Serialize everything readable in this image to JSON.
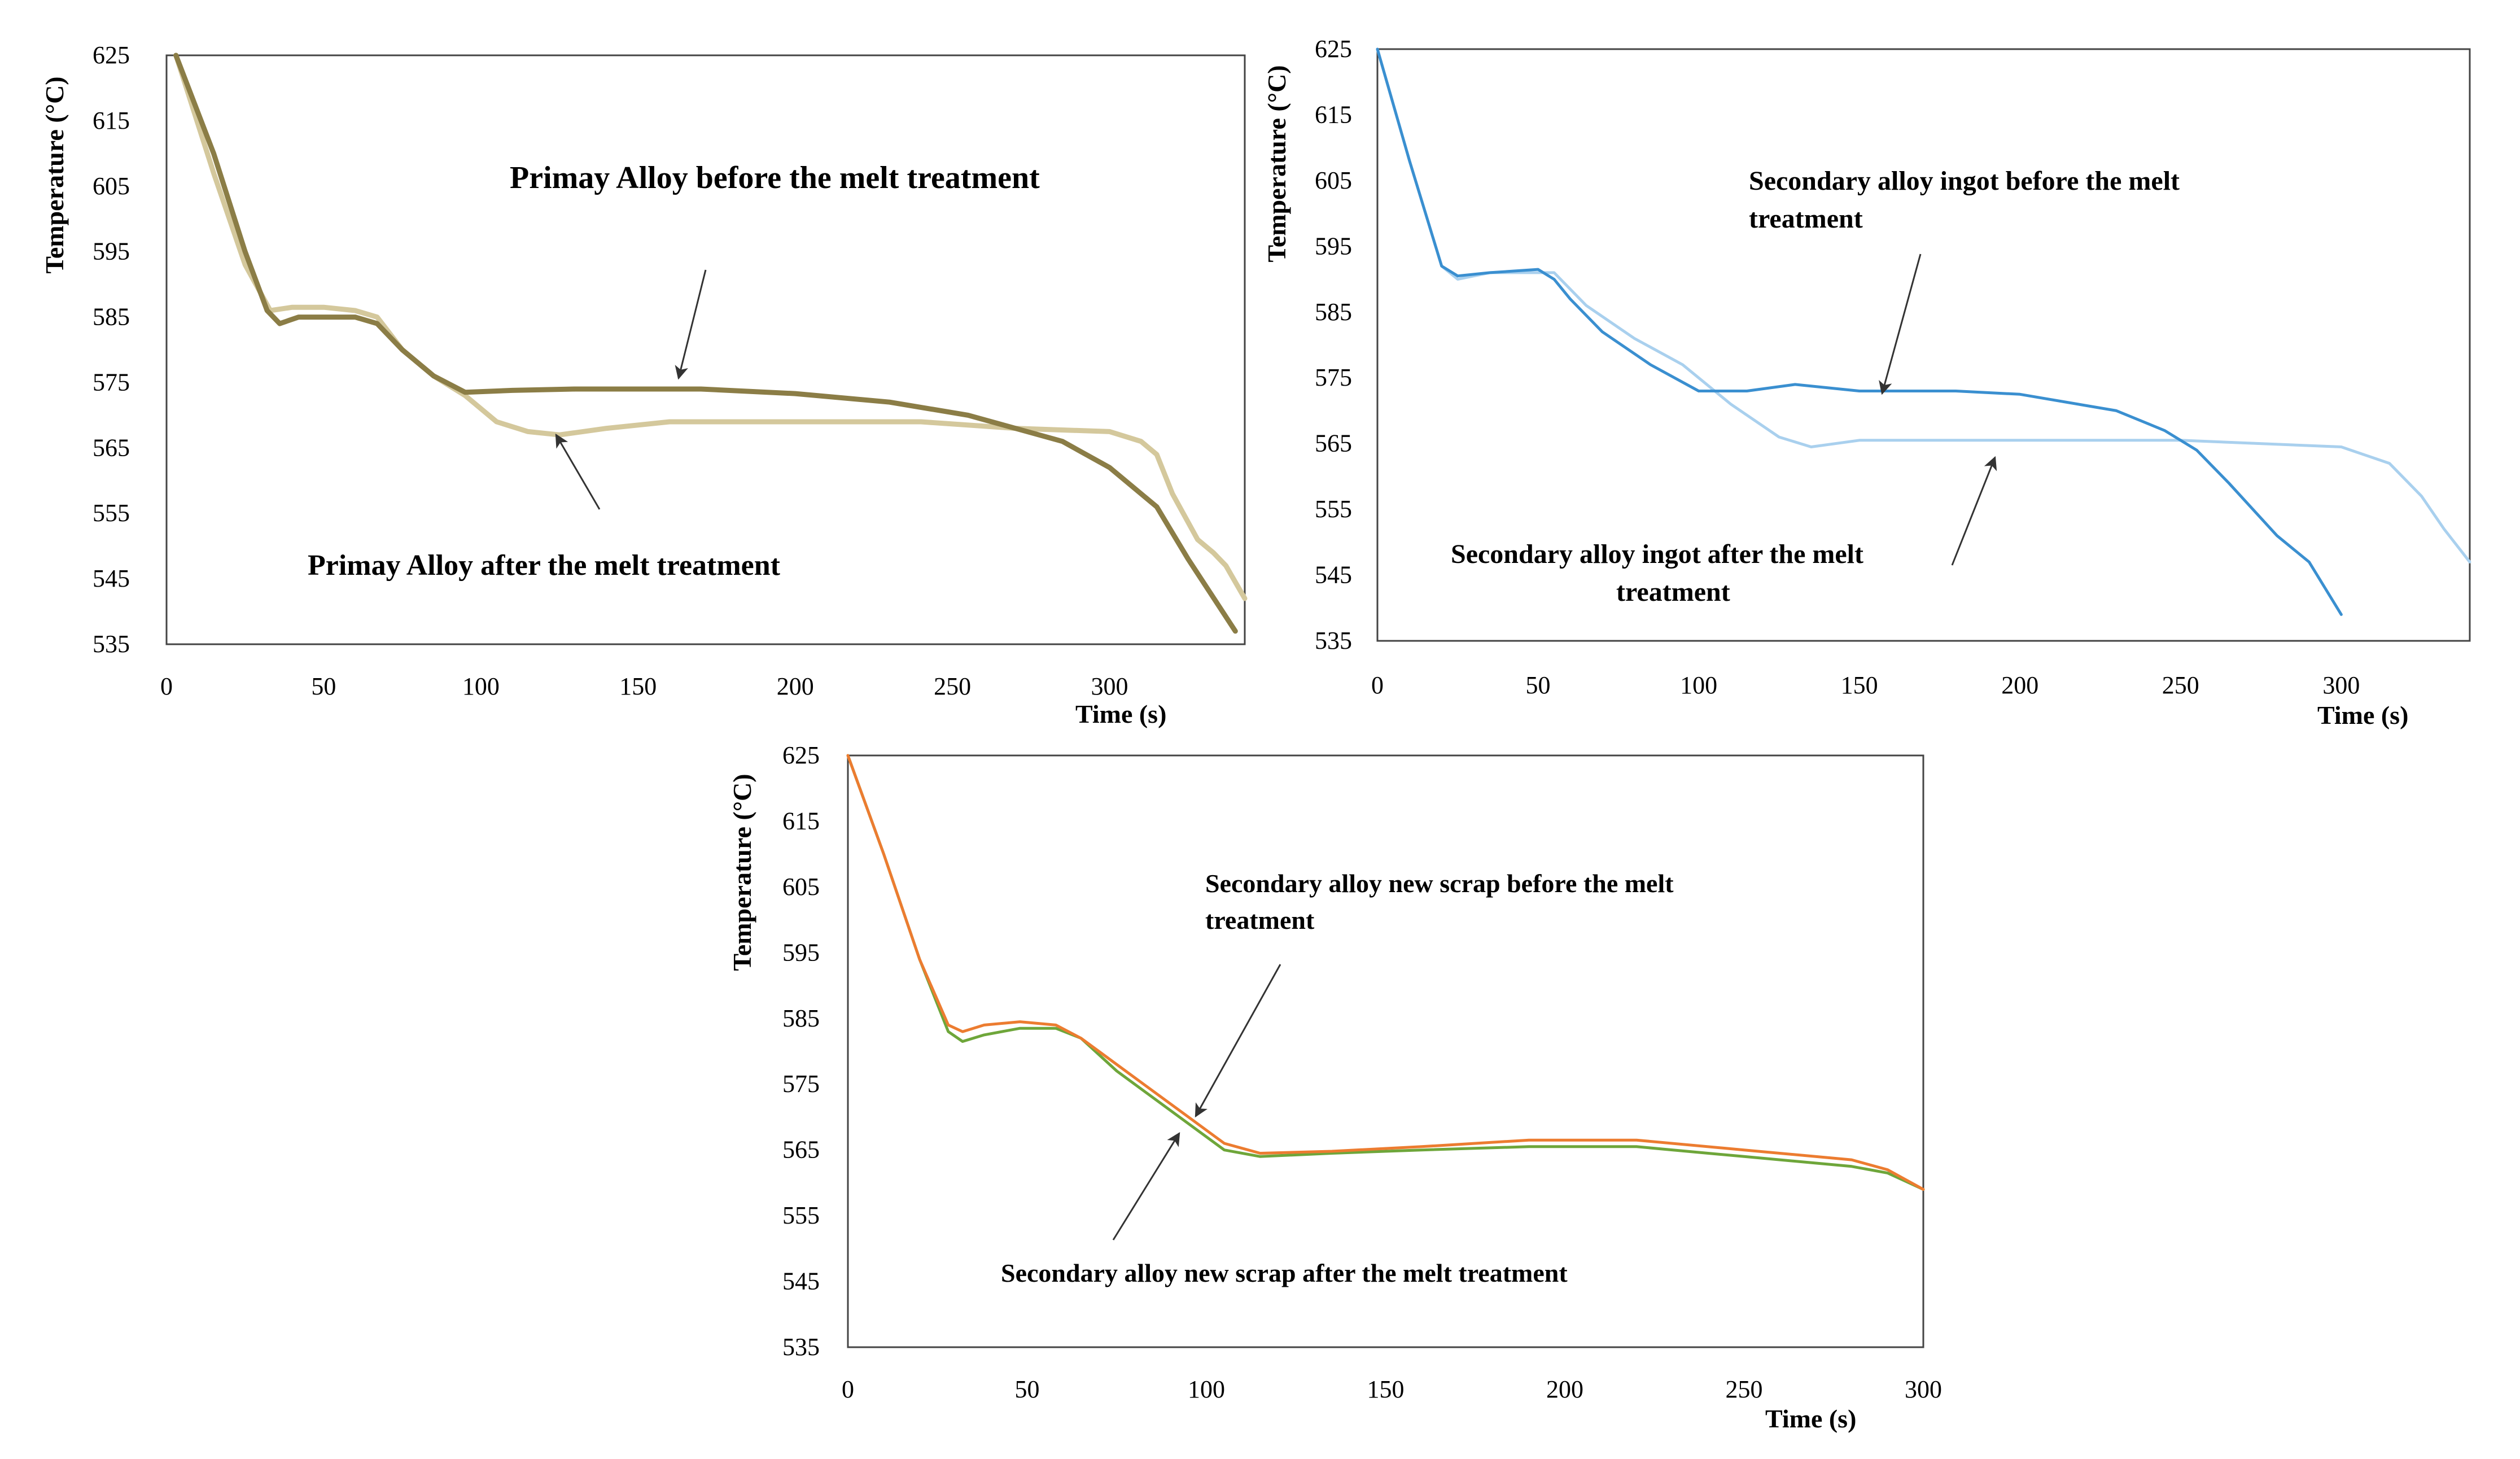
{
  "colors": {
    "primary_before": "#8b7d46",
    "primary_after": "#d4c89c",
    "ingot_before": "#3a8fd0",
    "ingot_after": "#a9d0ee",
    "scrap_before": "#ec7c30",
    "scrap_after": "#6ea63a",
    "arrow": "#333333"
  },
  "chart_data": [
    {
      "type": "line",
      "title": "",
      "xlabel": "Time (s)",
      "ylabel": "Temperature (°C)",
      "xlim": [
        0,
        343
      ],
      "ylim": [
        535,
        625
      ],
      "xticks": [
        0,
        50,
        100,
        150,
        200,
        250,
        300
      ],
      "yticks": [
        535,
        545,
        555,
        565,
        575,
        585,
        595,
        605,
        615,
        625
      ],
      "series": [
        {
          "name": "Primay Alloy before the melt treatment",
          "color_key": "primary_before",
          "x": [
            3,
            15,
            25,
            32,
            36,
            42,
            50,
            60,
            67,
            75,
            85,
            95,
            110,
            130,
            150,
            170,
            200,
            230,
            255,
            270,
            285,
            300,
            315,
            325,
            340
          ],
          "y": [
            625,
            610,
            595,
            586,
            584,
            585,
            585,
            585,
            584,
            580,
            576,
            573.5,
            573.8,
            574,
            574,
            574,
            573.3,
            572,
            570,
            568,
            566,
            562,
            556,
            548,
            537
          ]
        },
        {
          "name": "Primay Alloy after the melt treatment",
          "color_key": "primary_after",
          "x": [
            3,
            15,
            25,
            33,
            40,
            50,
            60,
            67,
            75,
            85,
            95,
            105,
            115,
            125,
            140,
            160,
            200,
            240,
            270,
            300,
            310,
            315,
            320,
            328,
            333,
            337,
            343
          ],
          "y": [
            625,
            607,
            593,
            586,
            586.5,
            586.5,
            586,
            585,
            580,
            576,
            573,
            569,
            567.5,
            567,
            568,
            569,
            569,
            569,
            568,
            567.5,
            566,
            564,
            558,
            551,
            549,
            547,
            542
          ]
        }
      ],
      "annotations": [
        {
          "text": "Primay Alloy before the melt treatment",
          "x": 160,
          "y": 575
        },
        {
          "text": "Primay Alloy after the melt treatment",
          "x": 130,
          "y": 568
        }
      ]
    },
    {
      "type": "line",
      "title": "",
      "xlabel": "Time (s)",
      "ylabel": "Temperature (°C)",
      "xlim": [
        0,
        340
      ],
      "ylim": [
        535,
        625
      ],
      "xticks": [
        0,
        50,
        100,
        150,
        200,
        250,
        300
      ],
      "yticks": [
        535,
        545,
        555,
        565,
        575,
        585,
        595,
        605,
        615,
        625
      ],
      "series": [
        {
          "name": "Secondary alloy ingot before the melt treatment",
          "color_key": "ingot_before",
          "x": [
            0,
            10,
            20,
            25,
            35,
            50,
            55,
            60,
            70,
            85,
            100,
            115,
            130,
            150,
            180,
            200,
            230,
            245,
            255,
            265,
            280,
            290,
            300
          ],
          "y": [
            625,
            608,
            592,
            590.5,
            591,
            591.5,
            590,
            587,
            582,
            577,
            573,
            573,
            574,
            573,
            573,
            572.5,
            570,
            567,
            564,
            559,
            551,
            547,
            539
          ]
        },
        {
          "name": "Secondary alloy ingot after the melt treatment",
          "color_key": "ingot_after",
          "x": [
            0,
            10,
            20,
            25,
            35,
            55,
            65,
            80,
            95,
            110,
            125,
            135,
            150,
            200,
            250,
            300,
            315,
            325,
            332,
            340
          ],
          "y": [
            625,
            608,
            592,
            590,
            591,
            591,
            586,
            581,
            577,
            571,
            566,
            564.5,
            565.5,
            565.5,
            565.5,
            564.5,
            562,
            557,
            552,
            547
          ]
        }
      ],
      "annotations": [
        {
          "text": "Secondary alloy ingot before the melt treatment",
          "x": 157,
          "y": 573
        },
        {
          "text": "Secondary alloy ingot after the melt treatment",
          "x": 192,
          "y": 563
        }
      ]
    },
    {
      "type": "line",
      "title": "",
      "xlabel": "Time (s)",
      "ylabel": "Temperature (°C)",
      "xlim": [
        0,
        300
      ],
      "ylim": [
        535,
        625
      ],
      "xticks": [
        0,
        50,
        100,
        150,
        200,
        250,
        300
      ],
      "yticks": [
        535,
        545,
        555,
        565,
        575,
        585,
        595,
        605,
        615,
        625
      ],
      "series": [
        {
          "name": "Secondary alloy new scrap before the melt treatment",
          "color_key": "scrap_before",
          "x": [
            0,
            10,
            20,
            28,
            32,
            38,
            48,
            58,
            65,
            75,
            85,
            95,
            105,
            115,
            135,
            160,
            190,
            220,
            250,
            280,
            290,
            300
          ],
          "y": [
            625,
            610,
            594,
            584,
            583,
            584,
            584.5,
            584,
            582,
            578,
            574,
            570,
            566,
            564.5,
            564.8,
            565.5,
            566.5,
            566.5,
            565,
            563.5,
            562,
            559
          ]
        },
        {
          "name": "Secondary alloy new scrap after the melt treatment",
          "color_key": "scrap_after",
          "x": [
            0,
            10,
            20,
            28,
            32,
            38,
            48,
            58,
            65,
            75,
            85,
            95,
            105,
            115,
            135,
            160,
            190,
            220,
            250,
            280,
            290,
            300
          ],
          "y": [
            625,
            610,
            594,
            583,
            581.5,
            582.5,
            583.5,
            583.5,
            582,
            577,
            573,
            569,
            565,
            564,
            564.5,
            565,
            565.5,
            565.5,
            564,
            562.5,
            561.5,
            559
          ]
        }
      ],
      "annotations": [
        {
          "text": "Secondary alloy new scrap before the melt treatment",
          "x": 97,
          "y": 570
        },
        {
          "text": "Secondary alloy new scrap after the melt treatment",
          "x": 93,
          "y": 568
        }
      ]
    }
  ],
  "charts_text": [
    {
      "ylabel": "Temperature (°C)",
      "xlabel": "Time (s)",
      "label_before": [
        "Primay Alloy before the melt treatment"
      ],
      "label_after": [
        "Primay Alloy after the melt treatment"
      ]
    },
    {
      "ylabel": "Temperature (°C)",
      "xlabel": "Time (s)",
      "label_before": [
        "Secondary alloy ingot before the melt",
        "treatment"
      ],
      "label_after": [
        "Secondary alloy ingot after the melt",
        "treatment"
      ]
    },
    {
      "ylabel": "Temperature (°C)",
      "xlabel": "Time (s)",
      "label_before": [
        "Secondary alloy new scrap before the melt",
        "treatment"
      ],
      "label_after": [
        "Secondary alloy new scrap after the melt treatment"
      ]
    }
  ]
}
